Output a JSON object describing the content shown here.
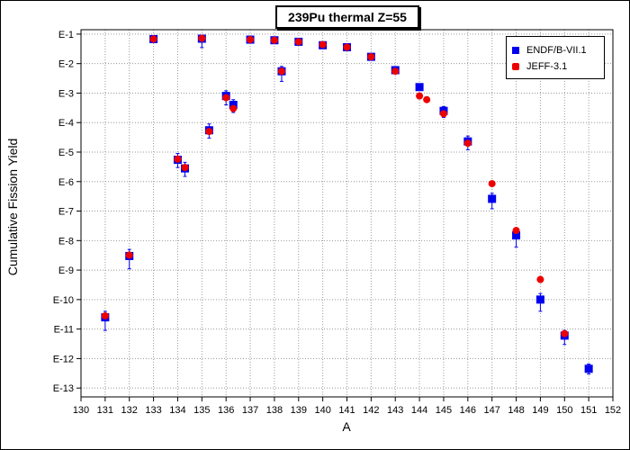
{
  "chart_data": {
    "type": "scatter",
    "title": "239Pu thermal Z=55",
    "xlabel": "A",
    "ylabel": "Cumulative Fission Yield",
    "xlim": [
      130,
      152
    ],
    "ylim_log10": [
      -13.3,
      -0.85
    ],
    "y_scale": "log",
    "x_ticks": [
      130,
      131,
      132,
      133,
      134,
      135,
      136,
      137,
      138,
      139,
      140,
      141,
      142,
      143,
      144,
      145,
      146,
      147,
      148,
      149,
      150,
      151,
      152
    ],
    "y_tick_labels": [
      "E-1",
      "E-2",
      "E-3",
      "E-4",
      "E-5",
      "E-6",
      "E-7",
      "E-8",
      "E-9",
      "E-10",
      "E-11",
      "E-12",
      "E-13"
    ],
    "grid": true,
    "legend_position": "top-right",
    "series": [
      {
        "name": "ENDF/B-VII.1",
        "color": "#0000ee",
        "marker": "square",
        "points": [
          {
            "x": 131,
            "y": 2.5e-11,
            "lo": 9e-12,
            "hi": 4e-11
          },
          {
            "x": 132,
            "y": 3e-09,
            "lo": 1.1e-09,
            "hi": 5e-09
          },
          {
            "x": 133,
            "y": 0.068,
            "lo": 0.06,
            "hi": 0.08
          },
          {
            "x": 134,
            "y": 5.5e-06,
            "lo": 3e-06,
            "hi": 9e-06
          },
          {
            "x": 134.3,
            "y": 2.8e-06,
            "lo": 1.5e-06,
            "hi": 4.5e-06
          },
          {
            "x": 135,
            "y": 0.07,
            "lo": 0.035,
            "hi": 0.09
          },
          {
            "x": 135.3,
            "y": 5.5e-05,
            "lo": 3e-05,
            "hi": 9e-05
          },
          {
            "x": 136,
            "y": 0.0008,
            "lo": 0.0004,
            "hi": 0.0012
          },
          {
            "x": 136.3,
            "y": 0.0004,
            "lo": 0.00022,
            "hi": 0.0006
          },
          {
            "x": 137,
            "y": 0.065,
            "lo": 0.06,
            "hi": 0.072
          },
          {
            "x": 138,
            "y": 0.062,
            "lo": 0.058,
            "hi": 0.068
          },
          {
            "x": 138.3,
            "y": 0.0055,
            "lo": 0.0025,
            "hi": 0.008
          },
          {
            "x": 139,
            "y": 0.055,
            "lo": 0.05,
            "hi": 0.06
          },
          {
            "x": 140,
            "y": 0.042,
            "lo": 0.038,
            "hi": 0.046
          },
          {
            "x": 141,
            "y": 0.036,
            "lo": 0.032,
            "hi": 0.04
          },
          {
            "x": 142,
            "y": 0.017,
            "lo": 0.015,
            "hi": 0.019
          },
          {
            "x": 143,
            "y": 0.006,
            "lo": 0.005,
            "hi": 0.007
          },
          {
            "x": 144,
            "y": 0.0016,
            "lo": 0.0014,
            "hi": 0.0018
          },
          {
            "x": 145,
            "y": 0.00025,
            "lo": 0.00015,
            "hi": 0.00035
          },
          {
            "x": 146,
            "y": 2.3e-05,
            "lo": 1.2e-05,
            "hi": 3.5e-05
          },
          {
            "x": 147,
            "y": 2.6e-07,
            "lo": 1.2e-07,
            "hi": 4e-07
          },
          {
            "x": 148,
            "y": 1.5e-08,
            "lo": 6e-09,
            "hi": 2.5e-08
          },
          {
            "x": 149,
            "y": 1e-10,
            "lo": 4e-11,
            "hi": 1.6e-10
          },
          {
            "x": 150,
            "y": 6e-12,
            "lo": 3e-12,
            "hi": 9e-12
          },
          {
            "x": 151,
            "y": 4.5e-13,
            "lo": 3e-13,
            "hi": 6.5e-13
          }
        ]
      },
      {
        "name": "JEFF-3.1",
        "color": "#ee0000",
        "marker": "circle",
        "points": [
          {
            "x": 131,
            "y": 2.8e-11
          },
          {
            "x": 132,
            "y": 3.2e-09
          },
          {
            "x": 133,
            "y": 0.068
          },
          {
            "x": 134,
            "y": 5.8e-06
          },
          {
            "x": 134.3,
            "y": 3e-06
          },
          {
            "x": 135,
            "y": 0.072
          },
          {
            "x": 135.3,
            "y": 5e-05
          },
          {
            "x": 136,
            "y": 0.0007
          },
          {
            "x": 136.3,
            "y": 0.0003
          },
          {
            "x": 137,
            "y": 0.065
          },
          {
            "x": 138,
            "y": 0.062
          },
          {
            "x": 138.3,
            "y": 0.0055
          },
          {
            "x": 139,
            "y": 0.055
          },
          {
            "x": 140,
            "y": 0.044
          },
          {
            "x": 141,
            "y": 0.036
          },
          {
            "x": 142,
            "y": 0.017
          },
          {
            "x": 143,
            "y": 0.0055
          },
          {
            "x": 144,
            "y": 0.0008
          },
          {
            "x": 144.3,
            "y": 0.0006
          },
          {
            "x": 145,
            "y": 0.0002
          },
          {
            "x": 146,
            "y": 2e-05
          },
          {
            "x": 147,
            "y": 8.5e-07
          },
          {
            "x": 148,
            "y": 2.2e-08
          },
          {
            "x": 149,
            "y": 4.8e-10
          },
          {
            "x": 150,
            "y": 7e-12
          }
        ]
      }
    ]
  }
}
